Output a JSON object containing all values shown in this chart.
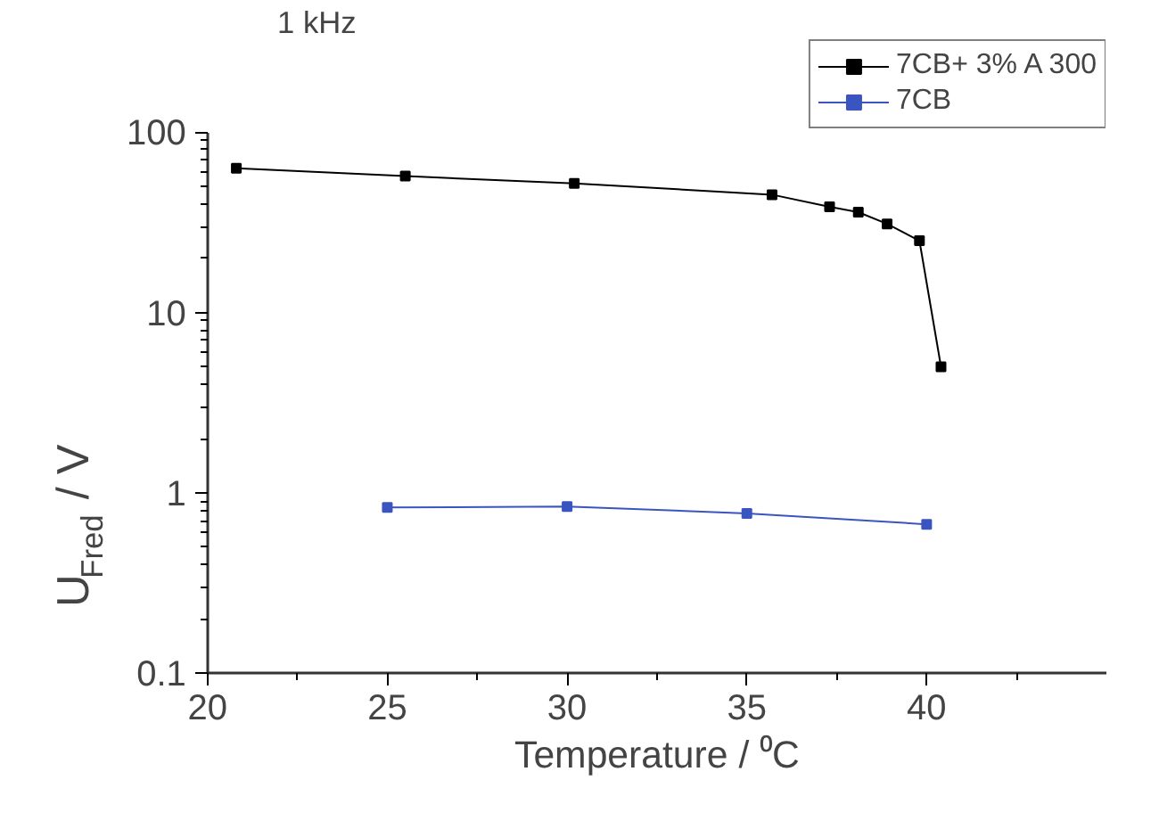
{
  "chart_data": {
    "type": "line",
    "title": "1 kHz",
    "xlabel": "Temperature / ⁰C",
    "ylabel": "U$_{Fred}$ / V",
    "log": "y",
    "xlim": [
      20,
      45
    ],
    "xticks": [
      20,
      25,
      30,
      35,
      40
    ],
    "ylim": [
      0.1,
      100
    ],
    "yticks": [
      0.1,
      1,
      10,
      100
    ],
    "grid": false,
    "legend": "top right",
    "marker": "square",
    "line_style": "solid",
    "series": [
      {
        "name": "7CB+ 3% A 300",
        "color": "#000000",
        "x": [
          20.8,
          25.5,
          30.2,
          35.7,
          37.3,
          38.1,
          38.9,
          39.8,
          40.4
        ],
        "values": [
          63,
          57,
          52,
          45,
          38.5,
          36,
          31,
          25,
          5
        ]
      },
      {
        "name": "7CB",
        "color": "#3a55c0",
        "x": [
          25,
          30,
          35,
          40
        ],
        "values": [
          0.83,
          0.84,
          0.77,
          0.67
        ]
      }
    ]
  }
}
